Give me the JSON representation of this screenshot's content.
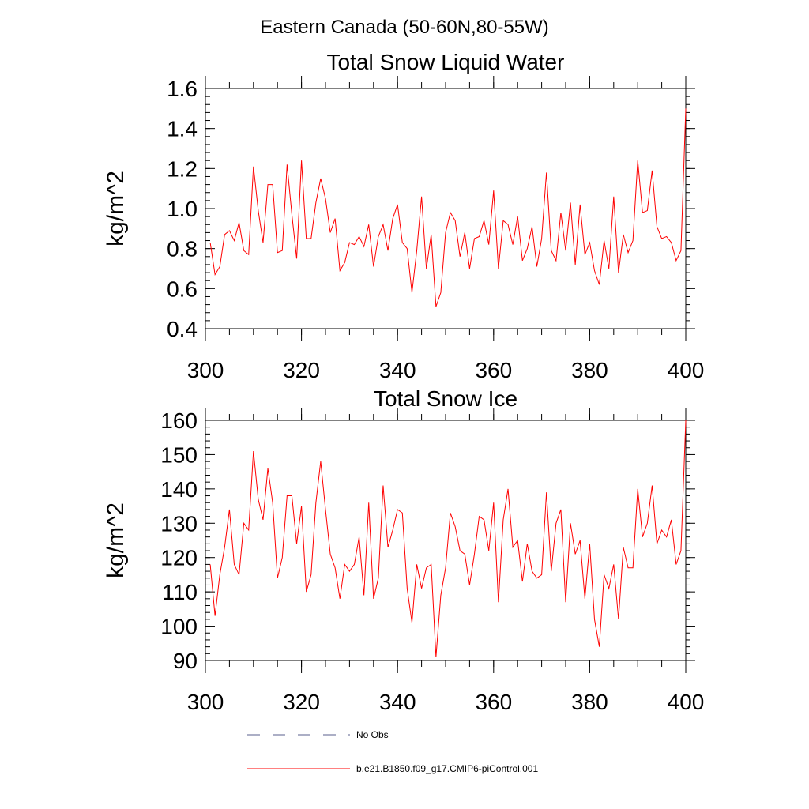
{
  "figure": {
    "suptitle": "Eastern Canada (50-60N,80-55W)"
  },
  "legend": {
    "items": [
      {
        "label": "No Obs",
        "style": "dashed",
        "color": "#5a5f8c"
      },
      {
        "label": "b.e21.B1850.f09_g17.CMIP6-piControl.001",
        "style": "solid",
        "color": "#ff0000"
      }
    ]
  },
  "chart_data": [
    {
      "type": "line",
      "title": "Total Snow Liquid Water",
      "xlabel": "",
      "ylabel": "kg/m^2",
      "xlim": [
        300,
        400
      ],
      "ylim": [
        0.4,
        1.6
      ],
      "xticks": [
        300,
        320,
        340,
        360,
        380,
        400
      ],
      "yticks": [
        0.4,
        0.6,
        0.8,
        1.0,
        1.2,
        1.4,
        1.6
      ],
      "ytick_labels": [
        "0.4",
        "0.6",
        "0.8",
        "1.0",
        "1.2",
        "1.4",
        "1.6"
      ],
      "xminor_step": 5,
      "yminor_step": 0.04,
      "series": [
        {
          "name": "b.e21.B1850.f09_g17.CMIP6-piControl.001",
          "color": "#ff0000",
          "x_start": 301,
          "values": [
            0.83,
            0.67,
            0.71,
            0.87,
            0.89,
            0.84,
            0.93,
            0.79,
            0.77,
            1.21,
            0.99,
            0.83,
            1.12,
            1.12,
            0.78,
            0.79,
            1.22,
            0.97,
            0.75,
            1.24,
            0.85,
            0.85,
            1.03,
            1.15,
            1.05,
            0.88,
            0.95,
            0.69,
            0.73,
            0.83,
            0.82,
            0.86,
            0.81,
            0.92,
            0.71,
            0.86,
            0.92,
            0.79,
            0.95,
            1.02,
            0.83,
            0.8,
            0.58,
            0.79,
            1.06,
            0.7,
            0.87,
            0.51,
            0.58,
            0.88,
            0.98,
            0.94,
            0.76,
            0.88,
            0.7,
            0.85,
            0.86,
            0.94,
            0.82,
            1.09,
            0.7,
            0.94,
            0.92,
            0.82,
            0.96,
            0.74,
            0.8,
            0.91,
            0.71,
            0.85,
            1.18,
            0.79,
            0.74,
            0.98,
            0.79,
            1.03,
            0.72,
            1.02,
            0.77,
            0.83,
            0.69,
            0.62,
            0.84,
            0.7,
            1.06,
            0.68,
            0.87,
            0.78,
            0.84,
            1.24,
            0.98,
            0.99,
            1.19,
            0.91,
            0.85,
            0.86,
            0.83,
            0.74,
            0.79,
            1.5
          ]
        }
      ]
    },
    {
      "type": "line",
      "title": "Total Snow Ice",
      "xlabel": "",
      "ylabel": "kg/m^2",
      "xlim": [
        300,
        400
      ],
      "ylim": [
        90,
        160
      ],
      "xticks": [
        300,
        320,
        340,
        360,
        380,
        400
      ],
      "yticks": [
        90,
        100,
        110,
        120,
        130,
        140,
        150,
        160
      ],
      "ytick_labels": [
        "90",
        "100",
        "110",
        "120",
        "130",
        "140",
        "150",
        "160"
      ],
      "xminor_step": 5,
      "yminor_step": 2,
      "series": [
        {
          "name": "b.e21.B1850.f09_g17.CMIP6-piControl.001",
          "color": "#ff0000",
          "x_start": 301,
          "values": [
            118,
            103,
            115,
            123,
            134,
            118,
            115,
            130,
            128,
            151,
            137,
            131,
            146,
            136,
            114,
            120,
            138,
            138,
            124,
            135,
            110,
            115,
            136,
            148,
            134,
            121,
            117,
            108,
            118,
            116,
            118,
            126,
            109,
            136,
            108,
            114,
            141,
            123,
            128,
            134,
            133,
            111,
            101,
            118,
            111,
            117,
            118,
            91,
            109,
            117,
            133,
            129,
            122,
            121,
            112,
            121,
            132,
            131,
            122,
            136,
            107,
            131,
            140,
            123,
            125,
            113,
            124,
            116,
            114,
            115,
            139,
            116,
            130,
            134,
            107,
            130,
            121,
            125,
            108,
            124,
            102,
            94,
            115,
            111,
            118,
            102,
            123,
            117,
            117,
            140,
            126,
            130,
            141,
            124,
            128,
            126,
            131,
            118,
            122,
            160
          ]
        }
      ]
    }
  ]
}
